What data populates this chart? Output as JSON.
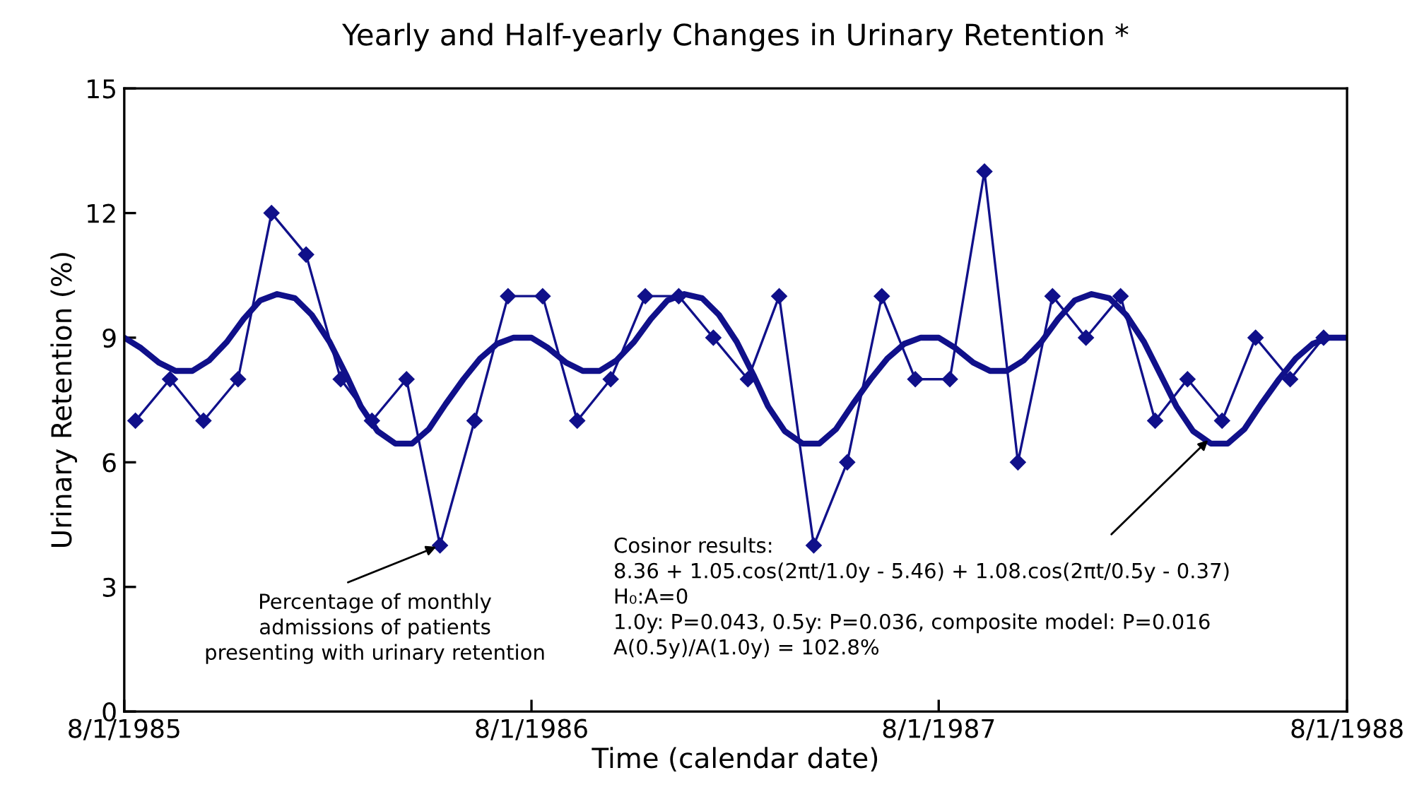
{
  "chart_data": {
    "type": "line",
    "title": "Yearly and Half-yearly Changes in Urinary Retention *",
    "xlabel": "Time (calendar date)",
    "ylabel": "Urinary Retention (%)",
    "xlim": [
      "1985-08-01",
      "1988-08-01"
    ],
    "xticks": [
      {
        "value": "1985-08-01",
        "label": "8/1/1985"
      },
      {
        "value": "1986-08-01",
        "label": "8/1/1986"
      },
      {
        "value": "1987-08-01",
        "label": "8/1/1987"
      },
      {
        "value": "1988-08-01",
        "label": "8/1/1988"
      }
    ],
    "ylim": [
      0,
      15
    ],
    "yticks": [
      0,
      3,
      6,
      9,
      12,
      15
    ],
    "grid": false,
    "legend": false,
    "series": [
      {
        "color": "#10108a",
        "marker": "diamond",
        "line_style": "solid",
        "x": [
          "1985-08-11",
          "1985-09-11",
          "1985-10-11",
          "1985-11-11",
          "1985-12-11",
          "1986-01-11",
          "1986-02-11",
          "1986-03-11",
          "1986-04-11",
          "1986-05-11",
          "1986-06-11",
          "1986-07-11",
          "1986-08-11",
          "1986-09-11",
          "1986-10-11",
          "1986-11-11",
          "1986-12-11",
          "1987-01-11",
          "1987-02-11",
          "1987-03-11",
          "1987-04-11",
          "1987-05-11",
          "1987-06-11",
          "1987-07-11",
          "1987-08-11",
          "1987-09-11",
          "1987-10-11",
          "1987-11-11",
          "1987-12-11",
          "1988-01-11",
          "1988-02-11",
          "1988-03-11",
          "1988-04-11",
          "1988-05-11",
          "1988-06-11",
          "1988-07-11"
        ],
        "values": [
          7,
          8,
          7,
          8,
          12,
          11,
          8,
          7,
          8,
          4,
          7,
          10,
          10,
          7,
          8,
          10,
          10,
          9,
          8,
          10,
          4,
          6,
          10,
          8,
          8,
          13,
          6,
          10,
          9,
          10,
          7,
          8,
          7,
          9,
          8,
          9
        ]
      },
      {
        "color": "#10108a",
        "marker": "none",
        "line_style": "solid",
        "x": [
          "1985-08-01",
          "1985-08-16",
          "1985-09-01",
          "1985-09-16",
          "1985-10-01",
          "1985-10-16",
          "1985-11-01",
          "1985-11-16",
          "1985-12-01",
          "1985-12-16",
          "1986-01-01",
          "1986-01-16",
          "1986-02-01",
          "1986-02-16",
          "1986-03-01",
          "1986-03-16",
          "1986-04-01",
          "1986-04-16",
          "1986-05-01",
          "1986-05-16",
          "1986-06-01",
          "1986-06-16",
          "1986-07-01",
          "1986-07-16",
          "1986-08-01",
          "1986-08-16",
          "1986-09-01",
          "1986-09-16",
          "1986-10-01",
          "1986-10-16",
          "1986-11-01",
          "1986-11-16",
          "1986-12-01",
          "1986-12-16",
          "1987-01-01",
          "1987-01-16",
          "1987-02-01",
          "1987-02-16",
          "1987-03-01",
          "1987-03-16",
          "1987-04-01",
          "1987-04-16",
          "1987-05-01",
          "1987-05-16",
          "1987-06-01",
          "1987-06-16",
          "1987-07-01",
          "1987-07-16",
          "1987-08-01",
          "1987-08-16",
          "1987-09-01",
          "1987-09-16",
          "1987-10-01",
          "1987-10-16",
          "1987-11-01",
          "1987-11-16",
          "1987-12-01",
          "1987-12-16",
          "1988-01-01",
          "1988-01-16",
          "1988-02-01",
          "1988-02-16",
          "1988-03-01",
          "1988-03-16",
          "1988-04-01",
          "1988-04-16",
          "1988-05-01",
          "1988-05-16",
          "1988-06-01",
          "1988-06-16",
          "1988-07-01",
          "1988-07-16",
          "1988-08-01"
        ],
        "values": [
          9.0,
          8.75,
          8.4,
          8.2,
          8.2,
          8.45,
          8.9,
          9.45,
          9.9,
          10.05,
          9.95,
          9.55,
          8.9,
          8.1,
          7.35,
          6.75,
          6.45,
          6.45,
          6.8,
          7.4,
          8.0,
          8.5,
          8.85,
          9.0,
          9.0,
          8.75,
          8.4,
          8.2,
          8.2,
          8.45,
          8.9,
          9.45,
          9.9,
          10.05,
          9.95,
          9.55,
          8.9,
          8.1,
          7.35,
          6.75,
          6.45,
          6.45,
          6.8,
          7.4,
          8.0,
          8.5,
          8.85,
          9.0,
          9.0,
          8.75,
          8.4,
          8.2,
          8.2,
          8.45,
          8.9,
          9.45,
          9.9,
          10.05,
          9.95,
          9.55,
          8.9,
          8.1,
          7.35,
          6.75,
          6.45,
          6.45,
          6.8,
          7.4,
          8.0,
          8.5,
          8.85,
          9.0,
          9.0
        ]
      }
    ],
    "annotations": [
      {
        "text": "Percentage of monthly\nadmissions of patients\npresenting with urinary retention",
        "x": "1986-05-11",
        "y": 4
      },
      {
        "text": "Cosinor results:\n8.36 + 1.05.cos(2πt/1.0y - 5.46) + 1.08.cos(2πt/0.5y - 0.37)\nH₀:A=0\n1.0y: P=0.043, 0.5y: P=0.036, composite model: P=0.016\nA(0.5y)/A(1.0y) = 102.8%",
        "x": "1988-04-01",
        "y": 6.6
      }
    ]
  }
}
